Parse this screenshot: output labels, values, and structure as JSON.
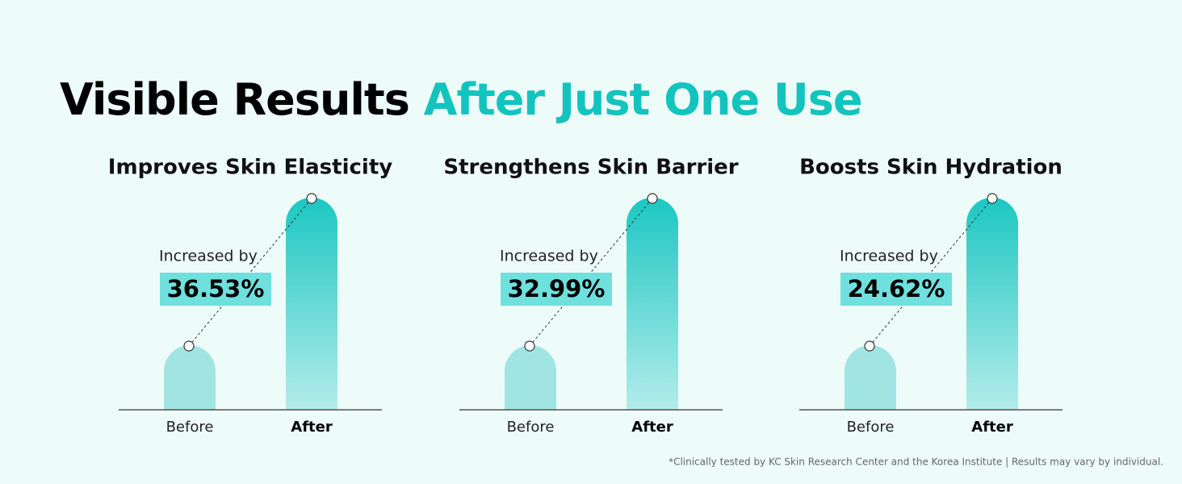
{
  "title": {
    "part1": "Visible Results",
    "part2": "After Just One Use"
  },
  "panels": [
    {
      "title": "Improves Skin Elasticity",
      "caption": "Increased by",
      "increase": "36.53%",
      "before_label": "Before",
      "after_label": "After"
    },
    {
      "title": "Strengthens Skin Barrier",
      "caption": "Increased by",
      "increase": "32.99%",
      "before_label": "Before",
      "after_label": "After"
    },
    {
      "title": "Boosts Skin Hydration",
      "caption": "Increased by",
      "increase": "24.62%",
      "before_label": "Before",
      "after_label": "After"
    }
  ],
  "footnote": "*Clinically tested by KC Skin Research Center and the Korea Institute | Results may vary by individual."
}
